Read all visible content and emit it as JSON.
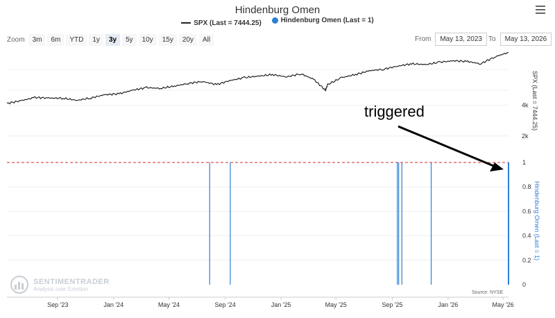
{
  "title": "Hindenburg Omen",
  "legend": [
    {
      "label": "SPX (Last = 7444.25)",
      "color": "#222222",
      "kind": "line"
    },
    {
      "label": "Hindenburg Omen (Last = 1)",
      "color": "#2d7fd3",
      "kind": "dot"
    }
  ],
  "zoom": {
    "label": "Zoom",
    "buttons": [
      "3m",
      "6m",
      "YTD",
      "1y",
      "3y",
      "5y",
      "10y",
      "15y",
      "20y",
      "All"
    ],
    "active": "3y"
  },
  "range": {
    "from_label": "From",
    "from_value": "May 13, 2023",
    "to_label": "To",
    "to_value": "May 13, 2026"
  },
  "annotation": "triggered",
  "watermark": {
    "line1": "SENTIMENTRADER",
    "line2": "Analysis over Emotion"
  },
  "source": "Source: NYSE",
  "chart_data": [
    {
      "type": "line",
      "name": "SPX (Last = 7444.25)",
      "ylabel": "SPX (Last = 7444.25)",
      "yticks": [
        "2k",
        "4k"
      ],
      "ytick_values": [
        2000,
        4000
      ],
      "ylim": [
        1000,
        7600
      ],
      "color": "#222222",
      "x": [
        "2023-05-13",
        "2023-06-13",
        "2023-07-13",
        "2023-08-13",
        "2023-09-13",
        "2023-10-13",
        "2023-11-13",
        "2023-12-13",
        "2024-01-13",
        "2024-02-13",
        "2024-03-13",
        "2024-04-13",
        "2024-05-13",
        "2024-06-13",
        "2024-07-13",
        "2024-08-13",
        "2024-09-13",
        "2024-10-13",
        "2024-11-13",
        "2024-12-13",
        "2025-01-13",
        "2025-02-13",
        "2025-03-13",
        "2025-04-08",
        "2025-04-13",
        "2025-05-13",
        "2025-06-13",
        "2025-07-13",
        "2025-08-13",
        "2025-09-13",
        "2025-10-13",
        "2025-11-13",
        "2025-12-13",
        "2026-01-13",
        "2026-02-13",
        "2026-03-13",
        "2026-04-13",
        "2026-05-13"
      ],
      "y": [
        4120,
        4300,
        4510,
        4470,
        4460,
        4320,
        4480,
        4690,
        4750,
        4990,
        5150,
        5100,
        5250,
        5430,
        5550,
        5350,
        5620,
        5800,
        5900,
        6000,
        5850,
        6050,
        5700,
        4980,
        5350,
        5800,
        6000,
        6250,
        6350,
        6550,
        6700,
        6650,
        6800,
        6900,
        6850,
        6700,
        7150,
        7444
      ]
    },
    {
      "type": "bar",
      "name": "Hindenburg Omen (Last = 1)",
      "ylabel": "Hindenburg Omen (Last = 1)",
      "yticks": [
        "0",
        "0.2",
        "0.4",
        "0.6",
        "0.8",
        "1"
      ],
      "ylim": [
        0,
        1
      ],
      "color": "#2d7fd3",
      "threshold": {
        "value": 1,
        "color": "#d62728"
      },
      "x": [
        "2024-07-29",
        "2024-09-12",
        "2025-09-12",
        "2025-09-15",
        "2025-09-22",
        "2025-11-25",
        "2026-05-13"
      ],
      "values": [
        1,
        1,
        1,
        1,
        1,
        1,
        1
      ]
    }
  ],
  "x_axis": {
    "ticks": [
      "Sep '23",
      "Jan '24",
      "May '24",
      "Sep '24",
      "Jan '25",
      "May '25",
      "Sep '25",
      "Jan '26",
      "May '26"
    ],
    "tick_dates": [
      "2023-09-01",
      "2024-01-01",
      "2024-05-01",
      "2024-09-01",
      "2025-01-01",
      "2025-05-01",
      "2025-09-01",
      "2026-01-01",
      "2026-05-01"
    ],
    "range": [
      "2023-05-13",
      "2026-05-13"
    ]
  }
}
